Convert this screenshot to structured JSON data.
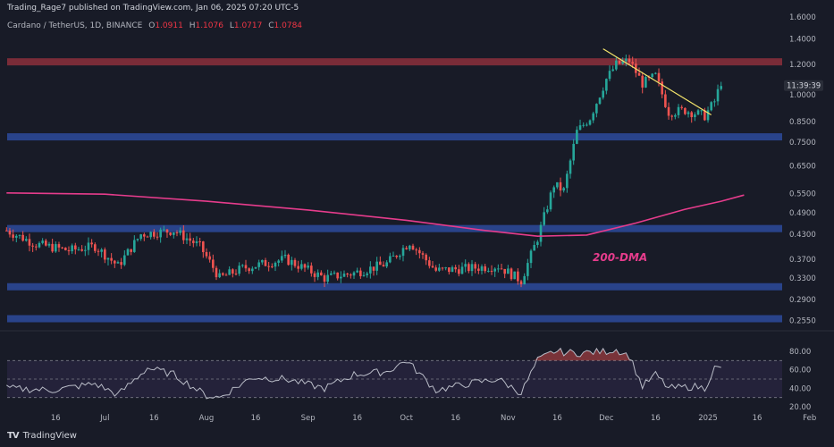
{
  "header": {
    "published": "Trading_Rage7 published on TradingView.com, Jan 06, 2025 07:20 UTC-5",
    "symbol": "Cardano / TetherUS, 1D, BINANCE",
    "ohlc": {
      "O": "1.0911",
      "H": "1.1076",
      "L": "1.0717",
      "C": "1.0784"
    }
  },
  "price_label": "11:39:39",
  "annotation": "200-DMA",
  "branding": "TradingView",
  "colors": {
    "background": "#181b27",
    "up": "#26a69a",
    "down": "#ef5350",
    "zone_blue": "#2d4a9c",
    "zone_red": "#8c2f3c",
    "dma": "#e63c8c",
    "trendline": "#f5e56b",
    "rsi": "#b9bcc7"
  },
  "chart_data": [
    {
      "type": "candlestick",
      "title": "",
      "y_scale": "log",
      "y_ticks": [
        "1.6000",
        "1.4000",
        "1.2000",
        "1.0000",
        "0.8500",
        "0.7500",
        "0.6500",
        "0.5500",
        "0.4900",
        "0.4300",
        "0.3700",
        "0.3300",
        "0.2900",
        "0.2550"
      ],
      "x_ticks": [
        "16",
        "Jul",
        "16",
        "Aug",
        "16",
        "Sep",
        "16",
        "Oct",
        "16",
        "Nov",
        "16",
        "Dec",
        "16",
        "2025",
        "16",
        "Feb"
      ],
      "horizontal_zones": [
        {
          "value": 1.22,
          "color": "red"
        },
        {
          "value": 0.775,
          "color": "blue"
        },
        {
          "value": 0.445,
          "color": "blue"
        },
        {
          "value": 0.313,
          "color": "blue"
        },
        {
          "value": 0.258,
          "color": "blue"
        }
      ],
      "trendline": {
        "from": [
          "Nov 30",
          1.32
        ],
        "to": [
          "Jan 02",
          0.885
        ]
      },
      "dma200_series": [
        {
          "date": "Jun 01",
          "value": 0.552
        },
        {
          "date": "Jul 01",
          "value": 0.548
        },
        {
          "date": "Aug 01",
          "value": 0.525
        },
        {
          "date": "Sep 01",
          "value": 0.498
        },
        {
          "date": "Oct 01",
          "value": 0.468
        },
        {
          "date": "Oct 25",
          "value": 0.44
        },
        {
          "date": "Nov 10",
          "value": 0.425
        },
        {
          "date": "Nov 25",
          "value": 0.428
        },
        {
          "date": "Dec 10",
          "value": 0.46
        },
        {
          "date": "Dec 25",
          "value": 0.5
        },
        {
          "date": "Jan 05",
          "value": 0.525
        },
        {
          "date": "Jan 12",
          "value": 0.545
        }
      ],
      "price_anchors": [
        {
          "date": "Jun 01",
          "value": 0.44
        },
        {
          "date": "Jun 10",
          "value": 0.405
        },
        {
          "date": "Jun 20",
          "value": 0.39
        },
        {
          "date": "Jun 28",
          "value": 0.4
        },
        {
          "date": "Jul 05",
          "value": 0.355
        },
        {
          "date": "Jul 12",
          "value": 0.43
        },
        {
          "date": "Jul 22",
          "value": 0.44
        },
        {
          "date": "Jul 30",
          "value": 0.4
        },
        {
          "date": "Aug 05",
          "value": 0.33
        },
        {
          "date": "Aug 12",
          "value": 0.35
        },
        {
          "date": "Aug 25",
          "value": 0.37
        },
        {
          "date": "Sep 06",
          "value": 0.33
        },
        {
          "date": "Sep 15",
          "value": 0.34
        },
        {
          "date": "Sep 25",
          "value": 0.36
        },
        {
          "date": "Oct 02",
          "value": 0.41
        },
        {
          "date": "Oct 10",
          "value": 0.345
        },
        {
          "date": "Oct 20",
          "value": 0.35
        },
        {
          "date": "Oct 29",
          "value": 0.355
        },
        {
          "date": "Nov 05",
          "value": 0.325
        },
        {
          "date": "Nov 10",
          "value": 0.42
        },
        {
          "date": "Nov 15",
          "value": 0.58
        },
        {
          "date": "Nov 18",
          "value": 0.56
        },
        {
          "date": "Nov 22",
          "value": 0.8
        },
        {
          "date": "Nov 26",
          "value": 0.87
        },
        {
          "date": "Dec 01",
          "value": 1.1
        },
        {
          "date": "Dec 04",
          "value": 1.2
        },
        {
          "date": "Dec 08",
          "value": 1.23
        },
        {
          "date": "Dec 12",
          "value": 1.07
        },
        {
          "date": "Dec 16",
          "value": 1.12
        },
        {
          "date": "Dec 20",
          "value": 0.9
        },
        {
          "date": "Dec 25",
          "value": 0.91
        },
        {
          "date": "Dec 31",
          "value": 0.88
        },
        {
          "date": "Jan 03",
          "value": 0.96
        },
        {
          "date": "Jan 05",
          "value": 1.08
        }
      ]
    },
    {
      "type": "line",
      "title": "",
      "y_ticks": [
        "80.00",
        "60.00",
        "40.00",
        "20.00"
      ],
      "ylim": [
        20,
        82
      ],
      "bands": [
        70,
        50,
        30
      ],
      "series": [
        {
          "values": [
            {
              "date": "Jun 01",
              "value": 40
            },
            {
              "date": "Jun 15",
              "value": 38
            },
            {
              "date": "Jun 28",
              "value": 45
            },
            {
              "date": "Jul 05",
              "value": 33
            },
            {
              "date": "Jul 14",
              "value": 62
            },
            {
              "date": "Jul 22",
              "value": 55
            },
            {
              "date": "Aug 01",
              "value": 32
            },
            {
              "date": "Aug 05",
              "value": 30
            },
            {
              "date": "Aug 15",
              "value": 52
            },
            {
              "date": "Aug 25",
              "value": 50
            },
            {
              "date": "Sep 06",
              "value": 40
            },
            {
              "date": "Sep 15",
              "value": 55
            },
            {
              "date": "Sep 25",
              "value": 58
            },
            {
              "date": "Oct 01",
              "value": 70
            },
            {
              "date": "Oct 10",
              "value": 38
            },
            {
              "date": "Oct 20",
              "value": 45
            },
            {
              "date": "Oct 29",
              "value": 50
            },
            {
              "date": "Nov 05",
              "value": 35
            },
            {
              "date": "Nov 10",
              "value": 70
            },
            {
              "date": "Nov 15",
              "value": 80
            },
            {
              "date": "Nov 22",
              "value": 78
            },
            {
              "date": "Dec 01",
              "value": 80
            },
            {
              "date": "Dec 04",
              "value": 82
            },
            {
              "date": "Dec 08",
              "value": 75
            },
            {
              "date": "Dec 12",
              "value": 42
            },
            {
              "date": "Dec 16",
              "value": 55
            },
            {
              "date": "Dec 20",
              "value": 40
            },
            {
              "date": "Dec 28",
              "value": 42
            },
            {
              "date": "Dec 31",
              "value": 40
            },
            {
              "date": "Jan 03",
              "value": 62
            },
            {
              "date": "Jan 05",
              "value": 61
            }
          ]
        }
      ]
    }
  ]
}
